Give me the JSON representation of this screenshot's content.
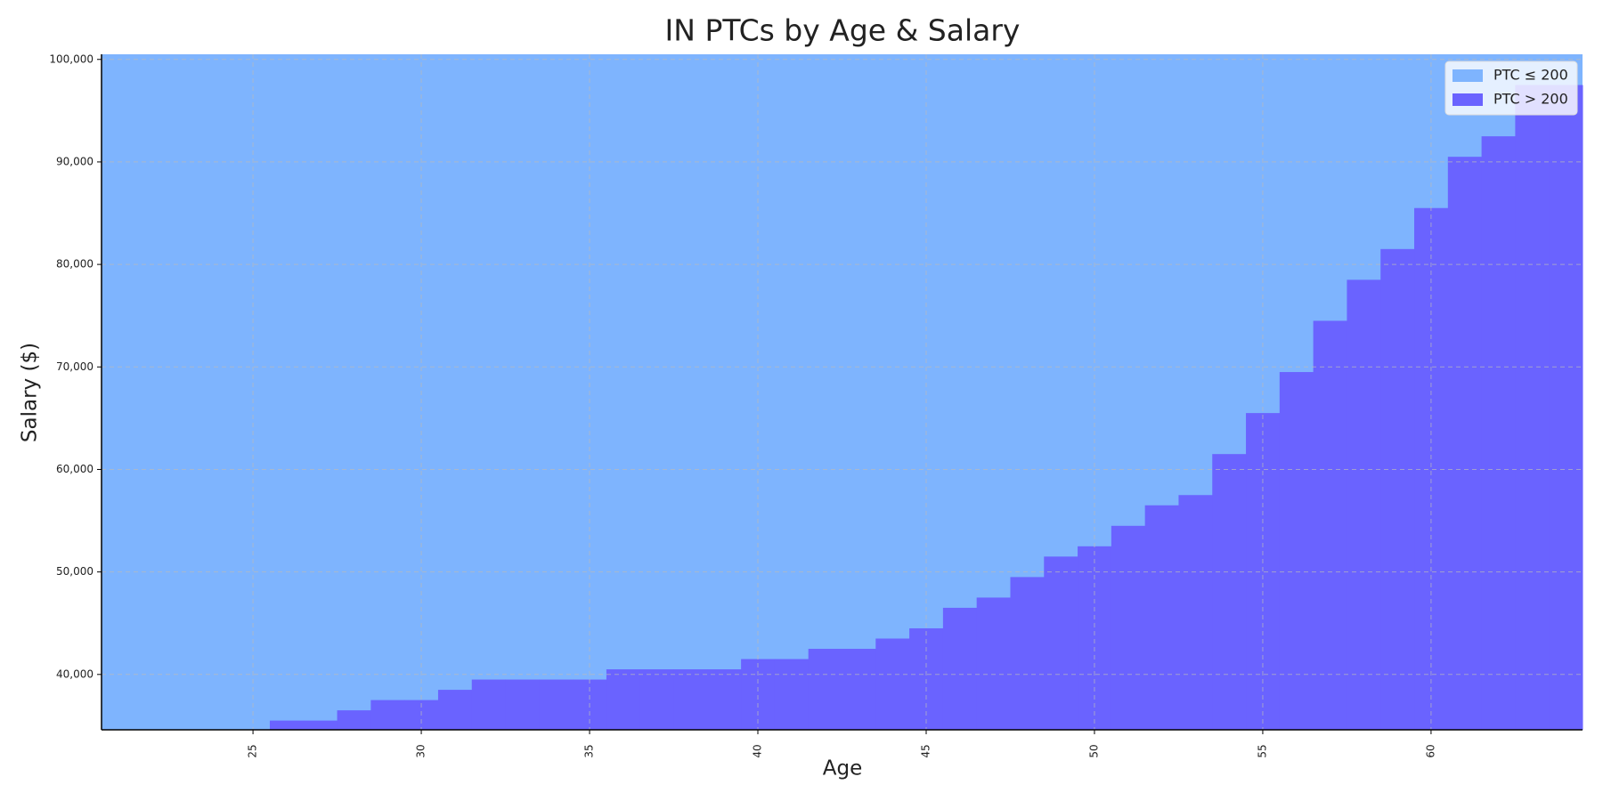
{
  "chart_data": {
    "type": "step-area",
    "title": "IN PTCs by Age & Salary",
    "x_label": "Age",
    "y_label": "Salary ($)",
    "x": [
      26,
      27,
      28,
      29,
      30,
      31,
      32,
      33,
      34,
      35,
      36,
      37,
      38,
      39,
      40,
      41,
      42,
      43,
      44,
      45,
      46,
      47,
      48,
      49,
      50,
      51,
      52,
      53,
      54,
      55,
      56,
      57,
      58,
      59,
      60,
      61,
      62,
      63,
      64
    ],
    "series": [
      {
        "name": "PTC ≤ 200",
        "color": "#7eb4fe"
      },
      {
        "name": "PTC > 200",
        "color": "#6a63ff",
        "values": [
          35500,
          35500,
          36500,
          37500,
          37500,
          38500,
          39500,
          39500,
          39500,
          39500,
          40500,
          40500,
          40500,
          40500,
          41500,
          41500,
          42500,
          42500,
          43500,
          44500,
          46500,
          47500,
          49500,
          51500,
          52500,
          54500,
          56500,
          57500,
          61500,
          65500,
          69500,
          74500,
          78500,
          81500,
          85500,
          90500,
          92500,
          97500,
          97500
        ]
      }
    ],
    "xlim": [
      20.5,
      64.5
    ],
    "xticks": [
      25,
      30,
      35,
      40,
      45,
      50,
      55,
      60
    ],
    "ylim": [
      34600,
      100500
    ],
    "yticks": [
      {
        "value": 40000,
        "label": "40,000"
      },
      {
        "value": 50000,
        "label": "50,000"
      },
      {
        "value": 60000,
        "label": "60,000"
      },
      {
        "value": 70000,
        "label": "70,000"
      },
      {
        "value": 80000,
        "label": "80,000"
      },
      {
        "value": 90000,
        "label": "90,000"
      },
      {
        "value": 100000,
        "label": "100,000"
      }
    ],
    "grid": true,
    "legend": "upper right"
  }
}
